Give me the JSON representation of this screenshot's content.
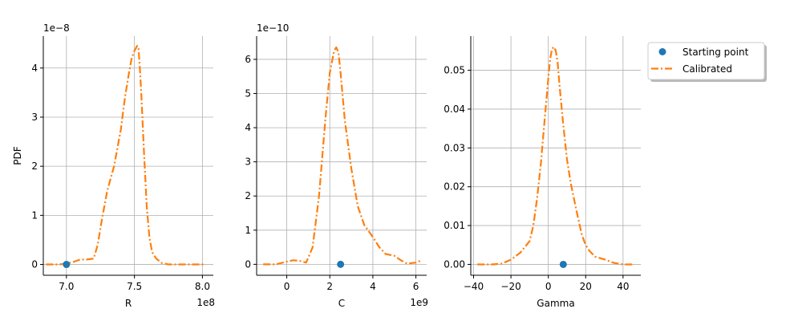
{
  "colors": {
    "starting_point": "#1f77b4",
    "calibrated": "#ff7f0e",
    "grid": "#b0b0b0",
    "axis": "#000000"
  },
  "legend": {
    "placement": "outside-right-top",
    "entries": [
      {
        "label": "Starting point",
        "style": "marker-circle",
        "color": "#1f77b4"
      },
      {
        "label": "Calibrated",
        "style": "dash-dot-line",
        "color": "#ff7f0e"
      }
    ]
  },
  "chart_data": [
    {
      "type": "line",
      "xlabel": "R",
      "ylabel": "PDF",
      "x_offset_label": "1e8",
      "y_offset_label": "1e−8",
      "xlim": [
        6.83,
        8.08
      ],
      "ylim": [
        -0.22,
        4.65
      ],
      "xticks": [
        {
          "v": 7.0,
          "label": "7.0"
        },
        {
          "v": 7.5,
          "label": "7.5"
        },
        {
          "v": 8.0,
          "label": "8.0"
        }
      ],
      "yticks": [
        {
          "v": 0,
          "label": "0"
        },
        {
          "v": 1,
          "label": "1"
        },
        {
          "v": 2,
          "label": "2"
        },
        {
          "v": 3,
          "label": "3"
        },
        {
          "v": 4,
          "label": "4"
        }
      ],
      "grid": true,
      "starting_point": {
        "x": 7.0,
        "y": 0
      },
      "series": [
        {
          "name": "Calibrated",
          "style": "dashdot",
          "x": [
            6.85,
            6.95,
            7.0,
            7.05,
            7.1,
            7.15,
            7.2,
            7.23,
            7.26,
            7.3,
            7.35,
            7.4,
            7.43,
            7.46,
            7.48,
            7.5,
            7.52,
            7.53,
            7.54,
            7.55,
            7.57,
            7.59,
            7.61,
            7.63,
            7.66,
            7.7,
            7.75,
            7.8,
            7.9,
            8.02
          ],
          "y": [
            0,
            0,
            0.02,
            0.05,
            0.1,
            0.1,
            0.12,
            0.4,
            0.9,
            1.5,
            2.0,
            2.75,
            3.4,
            3.9,
            4.2,
            4.35,
            4.45,
            4.4,
            4.0,
            3.5,
            2.3,
            1.2,
            0.55,
            0.25,
            0.12,
            0.03,
            0,
            0,
            0,
            0
          ]
        }
      ]
    },
    {
      "type": "line",
      "xlabel": "C",
      "ylabel": "",
      "x_offset_label": "1e9",
      "y_offset_label": "1e−10",
      "xlim": [
        -1.4,
        6.5
      ],
      "ylim": [
        -0.32,
        6.68
      ],
      "xticks": [
        {
          "v": 0,
          "label": "0"
        },
        {
          "v": 2,
          "label": "2"
        },
        {
          "v": 4,
          "label": "4"
        },
        {
          "v": 6,
          "label": "6"
        }
      ],
      "yticks": [
        {
          "v": 0,
          "label": "0"
        },
        {
          "v": 1,
          "label": "1"
        },
        {
          "v": 2,
          "label": "2"
        },
        {
          "v": 3,
          "label": "3"
        },
        {
          "v": 4,
          "label": "4"
        },
        {
          "v": 5,
          "label": "5"
        },
        {
          "v": 6,
          "label": "6"
        }
      ],
      "grid": true,
      "starting_point": {
        "x": 2.5,
        "y": 0
      },
      "series": [
        {
          "name": "Calibrated",
          "style": "dashdot",
          "x": [
            -1.1,
            -0.5,
            0,
            0.3,
            0.6,
            0.9,
            1.2,
            1.5,
            1.8,
            2.0,
            2.2,
            2.3,
            2.4,
            2.5,
            2.7,
            3.0,
            3.3,
            3.6,
            4.0,
            4.3,
            4.6,
            5.0,
            5.3,
            5.6,
            6.0,
            6.2
          ],
          "y": [
            0,
            0,
            0.08,
            0.12,
            0.1,
            0.05,
            0.5,
            2.0,
            4.3,
            5.6,
            6.25,
            6.35,
            6.2,
            5.6,
            4.2,
            2.8,
            1.7,
            1.15,
            0.8,
            0.5,
            0.3,
            0.25,
            0.12,
            0.02,
            0.05,
            0.1
          ]
        }
      ]
    },
    {
      "type": "line",
      "xlabel": "Gamma",
      "ylabel": "",
      "x_offset_label": "",
      "y_offset_label": "",
      "xlim": [
        -41.5,
        49.5
      ],
      "ylim": [
        -0.0028,
        0.0588
      ],
      "xticks": [
        {
          "v": -40,
          "label": "−40"
        },
        {
          "v": -20,
          "label": "−20"
        },
        {
          "v": 0,
          "label": "0"
        },
        {
          "v": 20,
          "label": "20"
        },
        {
          "v": 40,
          "label": "40"
        }
      ],
      "yticks": [
        {
          "v": 0,
          "label": "0.00"
        },
        {
          "v": 0.01,
          "label": "0.01"
        },
        {
          "v": 0.02,
          "label": "0.02"
        },
        {
          "v": 0.03,
          "label": "0.03"
        },
        {
          "v": 0.04,
          "label": "0.04"
        },
        {
          "v": 0.05,
          "label": "0.05"
        }
      ],
      "grid": true,
      "starting_point": {
        "x": 8,
        "y": 0
      },
      "series": [
        {
          "name": "Calibrated",
          "style": "dashdot",
          "x": [
            -38,
            -30,
            -25,
            -20,
            -15,
            -10,
            -8,
            -6,
            -4,
            -2,
            0,
            1,
            2,
            3,
            4,
            5,
            6,
            8,
            10,
            12,
            15,
            18,
            20,
            22,
            25,
            30,
            35,
            40,
            45
          ],
          "y": [
            0,
            0,
            0.0002,
            0.0012,
            0.003,
            0.006,
            0.01,
            0.017,
            0.026,
            0.037,
            0.048,
            0.053,
            0.0555,
            0.056,
            0.055,
            0.052,
            0.046,
            0.036,
            0.027,
            0.021,
            0.014,
            0.0075,
            0.005,
            0.0035,
            0.002,
            0.0013,
            0.0004,
            0,
            0
          ]
        }
      ]
    }
  ]
}
